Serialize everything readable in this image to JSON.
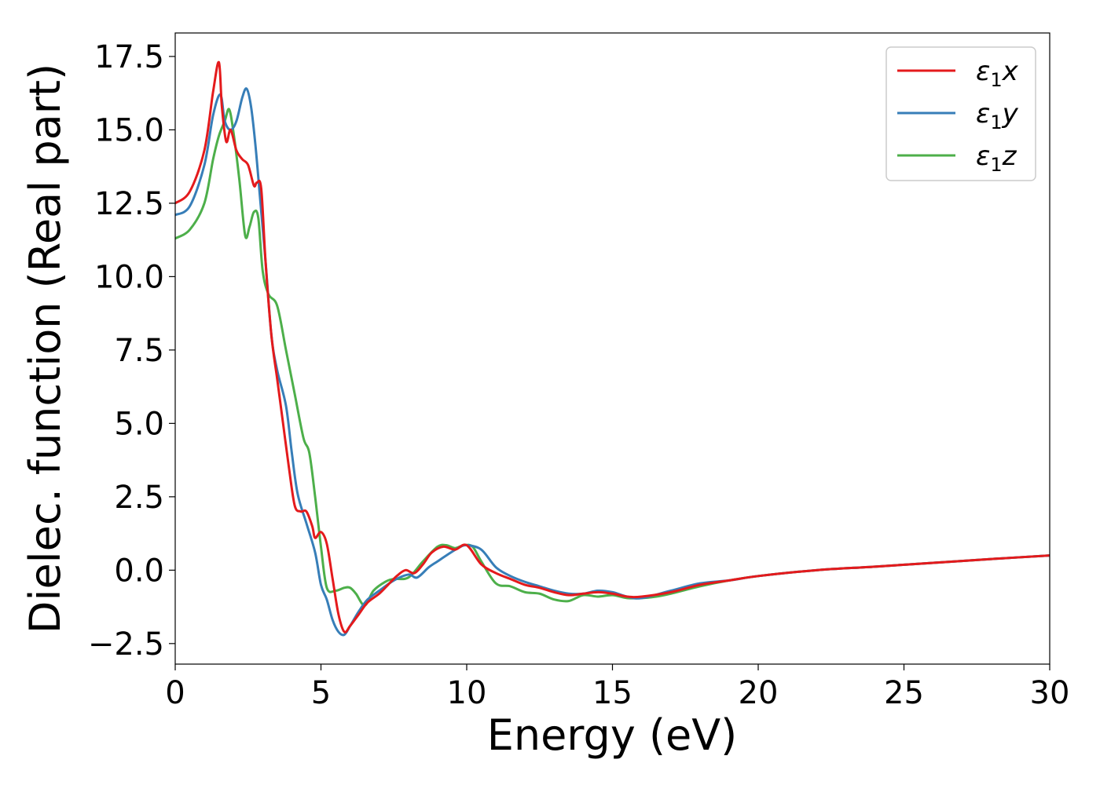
{
  "chart_data": {
    "type": "line",
    "title": "",
    "xlabel": "Energy (eV)",
    "ylabel": "Dielec. function (Real part)",
    "xlim": [
      0,
      30
    ],
    "ylim": [
      -3.2,
      18.3
    ],
    "xticks": [
      0,
      5,
      10,
      15,
      20,
      25,
      30
    ],
    "xtick_labels": [
      "0",
      "5",
      "10",
      "15",
      "20",
      "25",
      "30"
    ],
    "yticks": [
      -2.5,
      0.0,
      2.5,
      5.0,
      7.5,
      10.0,
      12.5,
      15.0,
      17.5
    ],
    "ytick_labels": [
      "−2.5",
      "0.0",
      "2.5",
      "5.0",
      "7.5",
      "10.0",
      "12.5",
      "15.0",
      "17.5"
    ],
    "grid": false,
    "legend_position": "top-right",
    "series": [
      {
        "name": "ε₁x",
        "legend_main": "ε",
        "legend_sub": "1",
        "legend_var": "x",
        "color": "#e41a1c",
        "x": [
          0,
          0.5,
          1.0,
          1.3,
          1.5,
          1.6,
          1.75,
          1.9,
          2.1,
          2.3,
          2.5,
          2.7,
          2.8,
          2.95,
          3.1,
          3.3,
          3.5,
          3.7,
          3.9,
          4.1,
          4.3,
          4.5,
          4.7,
          4.8,
          5.0,
          5.2,
          5.4,
          5.6,
          5.8,
          6.0,
          6.3,
          6.6,
          7.0,
          7.3,
          7.6,
          7.9,
          8.2,
          8.5,
          8.8,
          9.2,
          9.6,
          10.0,
          10.5,
          11.0,
          11.5,
          12.0,
          12.5,
          13.0,
          13.5,
          14.0,
          14.5,
          15.0,
          15.5,
          16.0,
          17.0,
          18.0,
          19.0,
          20.0,
          22.0,
          24.0,
          26.0,
          28.0,
          30.0
        ],
        "y": [
          12.5,
          12.9,
          14.3,
          16.3,
          17.3,
          15.8,
          14.6,
          15.0,
          14.3,
          14.0,
          13.8,
          13.1,
          13.2,
          13.0,
          10.5,
          8.0,
          6.5,
          5.0,
          3.5,
          2.2,
          2.0,
          2.0,
          1.5,
          1.1,
          1.3,
          0.9,
          -0.3,
          -1.5,
          -2.1,
          -1.9,
          -1.5,
          -1.1,
          -0.8,
          -0.5,
          -0.2,
          0.0,
          -0.1,
          0.2,
          0.6,
          0.8,
          0.7,
          0.85,
          0.2,
          -0.1,
          -0.3,
          -0.5,
          -0.6,
          -0.75,
          -0.85,
          -0.8,
          -0.75,
          -0.8,
          -0.9,
          -0.9,
          -0.75,
          -0.5,
          -0.35,
          -0.2,
          0.0,
          0.12,
          0.25,
          0.38,
          0.5
        ]
      },
      {
        "name": "ε₁y",
        "legend_main": "ε",
        "legend_sub": "1",
        "legend_var": "y",
        "color": "#377eb8",
        "x": [
          0,
          0.5,
          1.0,
          1.3,
          1.55,
          1.7,
          1.9,
          2.1,
          2.3,
          2.45,
          2.6,
          2.75,
          2.9,
          3.1,
          3.3,
          3.5,
          3.8,
          4.0,
          4.2,
          4.5,
          4.8,
          5.0,
          5.2,
          5.4,
          5.6,
          5.8,
          6.0,
          6.3,
          6.6,
          7.0,
          7.5,
          8.0,
          8.3,
          8.7,
          9.0,
          9.3,
          9.7,
          10.0,
          10.5,
          11.0,
          11.5,
          12.0,
          12.5,
          13.0,
          13.5,
          14.0,
          14.5,
          15.0,
          15.5,
          16.0,
          17.0,
          18.0,
          19.0,
          20.0,
          22.0,
          24.0,
          26.0,
          28.0,
          30.0
        ],
        "y": [
          12.1,
          12.4,
          13.8,
          15.5,
          16.2,
          15.3,
          15.0,
          15.3,
          16.1,
          16.4,
          15.8,
          14.5,
          12.8,
          10.5,
          8.0,
          6.8,
          5.6,
          4.0,
          2.6,
          1.6,
          0.6,
          -0.5,
          -1.0,
          -1.7,
          -2.1,
          -2.2,
          -1.9,
          -1.4,
          -1.0,
          -0.7,
          -0.35,
          -0.15,
          -0.25,
          0.1,
          0.3,
          0.5,
          0.75,
          0.85,
          0.7,
          0.1,
          -0.2,
          -0.4,
          -0.55,
          -0.7,
          -0.8,
          -0.8,
          -0.7,
          -0.75,
          -0.9,
          -0.95,
          -0.7,
          -0.45,
          -0.35,
          -0.2,
          0.0,
          0.12,
          0.25,
          0.38,
          0.5
        ]
      },
      {
        "name": "ε₁z",
        "legend_main": "ε",
        "legend_sub": "1",
        "legend_var": "z",
        "color": "#4daf4a",
        "x": [
          0,
          0.5,
          1.0,
          1.3,
          1.5,
          1.7,
          1.85,
          2.0,
          2.2,
          2.4,
          2.55,
          2.7,
          2.85,
          3.0,
          3.2,
          3.5,
          3.8,
          4.1,
          4.4,
          4.6,
          4.8,
          5.0,
          5.2,
          5.5,
          5.8,
          6.0,
          6.2,
          6.5,
          6.8,
          7.2,
          7.5,
          8.0,
          8.5,
          9.0,
          9.3,
          9.6,
          9.9,
          10.2,
          10.5,
          11.0,
          11.5,
          12.0,
          12.5,
          13.0,
          13.5,
          14.0,
          14.5,
          15.0,
          15.5,
          16.0,
          16.5,
          17.0,
          18.0,
          19.0,
          20.0,
          22.0,
          24.0,
          26.0,
          28.0,
          30.0
        ],
        "y": [
          11.3,
          11.6,
          12.5,
          14.0,
          14.8,
          15.3,
          15.7,
          14.9,
          13.3,
          11.4,
          11.7,
          12.2,
          12.0,
          10.2,
          9.4,
          9.0,
          7.5,
          6.0,
          4.5,
          4.0,
          2.5,
          0.8,
          -0.6,
          -0.7,
          -0.6,
          -0.6,
          -0.8,
          -1.2,
          -0.7,
          -0.4,
          -0.3,
          -0.25,
          0.3,
          0.8,
          0.85,
          0.75,
          0.85,
          0.8,
          0.3,
          -0.45,
          -0.55,
          -0.75,
          -0.8,
          -1.0,
          -1.05,
          -0.85,
          -0.9,
          -0.85,
          -0.95,
          -0.95,
          -0.9,
          -0.8,
          -0.55,
          -0.35,
          -0.2,
          0.0,
          0.12,
          0.25,
          0.38,
          0.5
        ]
      }
    ]
  }
}
